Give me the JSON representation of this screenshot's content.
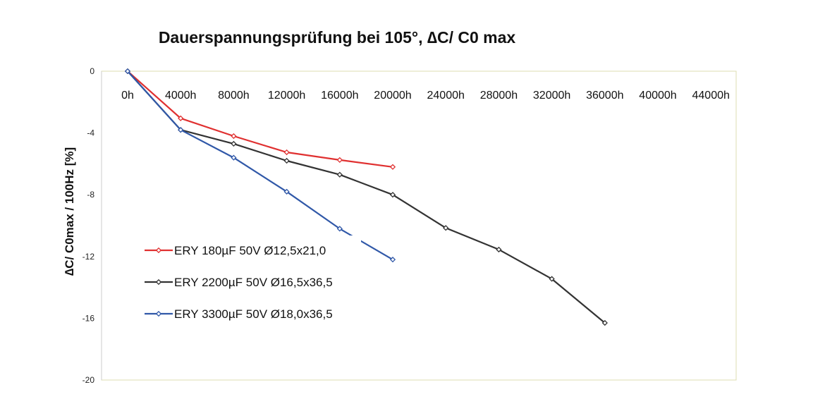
{
  "chart_data": {
    "type": "line",
    "title": "Dauerspannungsprüfung bei 105°, ∆C/ C0 max",
    "xlabel": "",
    "ylabel": "∆C/ C0max / 100Hz [%]",
    "x_tick_labels": [
      "0h",
      "4000h",
      "8000h",
      "12000h",
      "16000h",
      "20000h",
      "24000h",
      "28000h",
      "32000h",
      "36000h",
      "40000h",
      "44000h"
    ],
    "y_tick_labels": [
      "0",
      "-4",
      "-8",
      "-12",
      "-16",
      "-20"
    ],
    "ylim": [
      -20,
      0
    ],
    "grid": false,
    "legend_position": "lower-left",
    "series": [
      {
        "name": "ERY 180µF 50V Ø12,5x21,0",
        "color": "#e03030",
        "x": [
          0,
          4000,
          8000,
          12000,
          16000,
          20000
        ],
        "values": [
          0,
          -3.05,
          -4.2,
          -5.25,
          -5.75,
          -6.2
        ]
      },
      {
        "name": "ERY 2200µF 50V Ø16,5x36,5",
        "color": "#333333",
        "x": [
          0,
          4000,
          8000,
          12000,
          16000,
          20000,
          24000,
          28000,
          32000,
          36000
        ],
        "values": [
          0,
          -3.8,
          -4.7,
          -5.8,
          -6.7,
          -8.0,
          -10.15,
          -11.55,
          -13.45,
          -16.3
        ]
      },
      {
        "name": "ERY 3300µF 50V Ø18,0x36,5",
        "color": "#3058a8",
        "x": [
          0,
          4000,
          8000,
          12000,
          16000,
          20000
        ],
        "values": [
          0,
          -3.8,
          -5.6,
          -7.8,
          -10.2,
          -12.2
        ]
      }
    ]
  }
}
